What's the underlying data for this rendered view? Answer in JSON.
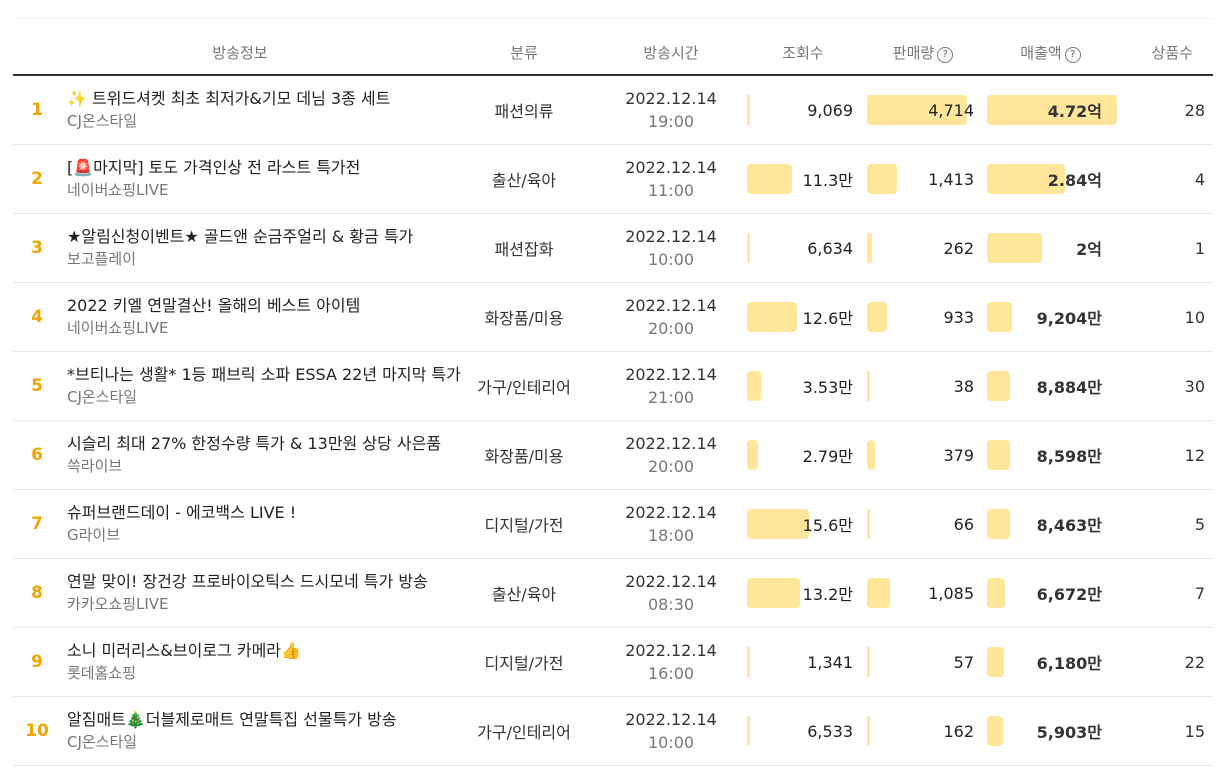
{
  "headers": {
    "info": "방송정보",
    "category": "분류",
    "time": "방송시간",
    "views": "조회수",
    "sales": "판매량",
    "revenue": "매출액",
    "products": "상품수",
    "help_glyph": "?"
  },
  "colors": {
    "rank": "#f0a500",
    "bar": "#ffe69a"
  },
  "rows": [
    {
      "rank": "1",
      "emoji": "✨",
      "title": " 트위드셔켓 최초 최저가&기모 데님 3종 세트",
      "channel": "CJ온스타일",
      "category": "패션의류",
      "date": "2022.12.14",
      "hour": "19:00",
      "views": "9,069",
      "views_level": 0.02,
      "sales": "4,714",
      "sales_level": 1.0,
      "revenue": "4.72억",
      "revenue_level": 1.0,
      "products": "28"
    },
    {
      "rank": "2",
      "emoji": "",
      "title": "[🚨마지막] 토도 가격인상 전 라스트 특가전",
      "channel": "네이버쇼핑LIVE",
      "category": "출산/육아",
      "date": "2022.12.14",
      "hour": "11:00",
      "views": "11.3만",
      "views_level": 0.72,
      "sales": "1,413",
      "sales_level": 0.3,
      "revenue": "2.84억",
      "revenue_level": 0.6,
      "products": "4"
    },
    {
      "rank": "3",
      "emoji": "",
      "title": "★알림신청이벤트★ 골드앤 순금주얼리 & 황금 특가",
      "channel": "보고플레이",
      "category": "패션잡화",
      "date": "2022.12.14",
      "hour": "10:00",
      "views": "6,634",
      "views_level": 0.02,
      "sales": "262",
      "sales_level": 0.05,
      "revenue": "2억",
      "revenue_level": 0.42,
      "products": "1"
    },
    {
      "rank": "4",
      "emoji": "",
      "title": "2022 키엘 연말결산! 올해의 베스트 아이템",
      "channel": "네이버쇼핑LIVE",
      "category": "화장품/미용",
      "date": "2022.12.14",
      "hour": "20:00",
      "views": "12.6만",
      "views_level": 0.81,
      "sales": "933",
      "sales_level": 0.2,
      "revenue": "9,204만",
      "revenue_level": 0.19,
      "products": "10"
    },
    {
      "rank": "5",
      "emoji": "",
      "title": "*브티나는 생활* 1등 패브릭 소파 ESSA 22년 마지막 특가",
      "channel": "CJ온스타일",
      "category": "가구/인테리어",
      "date": "2022.12.14",
      "hour": "21:00",
      "views": "3.53만",
      "views_level": 0.22,
      "sales": "38",
      "sales_level": 0.01,
      "revenue": "8,884만",
      "revenue_level": 0.18,
      "products": "30"
    },
    {
      "rank": "6",
      "emoji": "",
      "title": "시슬리 최대 27% 한정수량 특가 & 13만원 상당 사은품",
      "channel": "쓱라이브",
      "category": "화장품/미용",
      "date": "2022.12.14",
      "hour": "20:00",
      "views": "2.79만",
      "views_level": 0.17,
      "sales": "379",
      "sales_level": 0.08,
      "revenue": "8,598만",
      "revenue_level": 0.18,
      "products": "12"
    },
    {
      "rank": "7",
      "emoji": "",
      "title": "슈퍼브랜드데이 - 에코백스 LIVE !",
      "channel": "G라이브",
      "category": "디지털/가전",
      "date": "2022.12.14",
      "hour": "18:00",
      "views": "15.6만",
      "views_level": 1.0,
      "sales": "66",
      "sales_level": 0.01,
      "revenue": "8,463만",
      "revenue_level": 0.18,
      "products": "5"
    },
    {
      "rank": "8",
      "emoji": "",
      "title": "연말 맞이! 장건강 프로바이오틱스 드시모네 특가 방송",
      "channel": "카카오쇼핑LIVE",
      "category": "출산/육아",
      "date": "2022.12.14",
      "hour": "08:30",
      "views": "13.2만",
      "views_level": 0.85,
      "sales": "1,085",
      "sales_level": 0.23,
      "revenue": "6,672만",
      "revenue_level": 0.14,
      "products": "7"
    },
    {
      "rank": "9",
      "emoji": "",
      "title": "소니 미러리스&브이로그 카메라👍",
      "channel": "롯데홈쇼핑",
      "category": "디지털/가전",
      "date": "2022.12.14",
      "hour": "16:00",
      "views": "1,341",
      "views_level": 0.01,
      "sales": "57",
      "sales_level": 0.01,
      "revenue": "6,180만",
      "revenue_level": 0.13,
      "products": "22"
    },
    {
      "rank": "10",
      "emoji": "",
      "title": "알짐매트🎄더블제로매트 연말특집 선물특가 방송",
      "channel": "CJ온스타일",
      "category": "가구/인테리어",
      "date": "2022.12.14",
      "hour": "10:00",
      "views": "6,533",
      "views_level": 0.02,
      "sales": "162",
      "sales_level": 0.03,
      "revenue": "5,903만",
      "revenue_level": 0.12,
      "products": "15"
    }
  ]
}
